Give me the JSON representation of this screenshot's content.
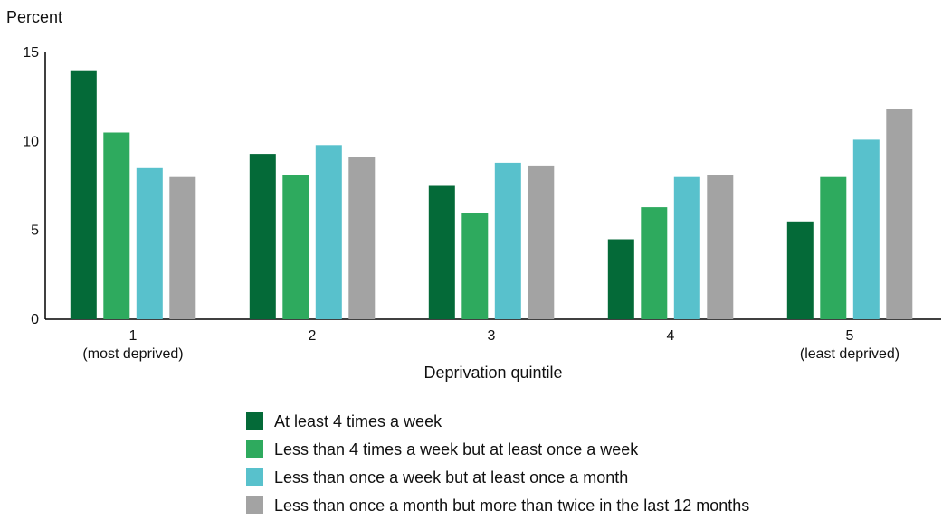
{
  "chart_data": {
    "type": "bar",
    "ylabel": "Percent",
    "xlabel": "Deprivation quintile",
    "ylim": [
      0,
      15
    ],
    "yticks": [
      0,
      5,
      10,
      15
    ],
    "categories": [
      [
        "1",
        "(most deprived)"
      ],
      [
        "2"
      ],
      [
        "3"
      ],
      [
        "4"
      ],
      [
        "5",
        "(least deprived)"
      ]
    ],
    "series": [
      {
        "name": "At least 4 times a week",
        "color": "#046a38",
        "values": [
          14.0,
          9.3,
          7.5,
          4.5,
          5.5
        ]
      },
      {
        "name": "Less than 4 times a week but at least once a week",
        "color": "#2eaa5e",
        "values": [
          10.5,
          8.1,
          6.0,
          6.3,
          8.0
        ]
      },
      {
        "name": "Less than once a week but at least once a month",
        "color": "#58c1cc",
        "values": [
          8.5,
          9.8,
          8.8,
          8.0,
          10.1
        ]
      },
      {
        "name": "Less than once a month but more than twice in the last 12 months",
        "color": "#a3a3a3",
        "values": [
          8.0,
          9.1,
          8.6,
          8.1,
          11.8
        ]
      }
    ],
    "grid": false,
    "legend_position": "bottom"
  }
}
